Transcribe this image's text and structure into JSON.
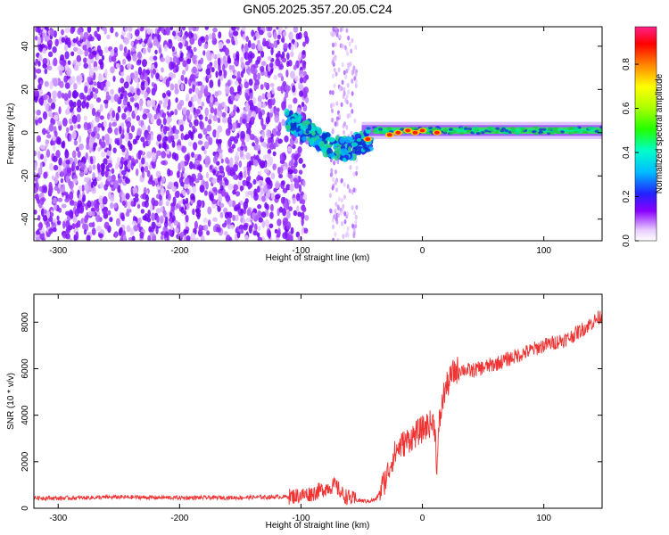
{
  "title": "GN05.2025.357.20.05.C24",
  "chart_data": [
    {
      "type": "heatmap",
      "xlabel": "Height of straight line (km)",
      "ylabel": "Frequency (Hz)",
      "xlim": [
        -320,
        148
      ],
      "ylim": [
        -50,
        49
      ],
      "x_ticks": [
        -300,
        -200,
        -100,
        0,
        100
      ],
      "y_ticks": [
        -40,
        -20,
        0,
        20,
        40
      ],
      "colorbar": {
        "label": "Normalized spectral amplitude",
        "range": [
          0,
          0.97
        ],
        "ticks": [
          "0.0",
          "0.2",
          "0.4",
          "0.6",
          "0.8"
        ]
      },
      "band_centerline": [
        {
          "x": -112,
          "y": 6
        },
        {
          "x": -100,
          "y": 2
        },
        {
          "x": -90,
          "y": -1
        },
        {
          "x": -80,
          "y": -5
        },
        {
          "x": -70,
          "y": -7
        },
        {
          "x": -60,
          "y": -8
        },
        {
          "x": -50,
          "y": -4
        },
        {
          "x": -40,
          "y": -3
        },
        {
          "x": -30,
          "y": -1
        },
        {
          "x": -20,
          "y": 0
        },
        {
          "x": -10,
          "y": 0
        },
        {
          "x": 0,
          "y": 1
        },
        {
          "x": 20,
          "y": 1
        },
        {
          "x": 60,
          "y": 1
        },
        {
          "x": 100,
          "y": 1
        },
        {
          "x": 148,
          "y": 1
        }
      ],
      "peak_regions": [
        {
          "x": -45,
          "y": -3
        },
        {
          "x": -27,
          "y": -1
        },
        {
          "x": -20,
          "y": 0
        },
        {
          "x": -12,
          "y": 1
        },
        {
          "x": -6,
          "y": 0
        },
        {
          "x": 0,
          "y": 1
        },
        {
          "x": 12,
          "y": 0
        }
      ]
    },
    {
      "type": "line",
      "xlabel": "Height of straight line (km)",
      "ylabel": "SNR (10 * v/v)",
      "xlim": [
        -320,
        148
      ],
      "ylim": [
        0,
        9200
      ],
      "x_ticks": [
        -300,
        -200,
        -100,
        0,
        100
      ],
      "y_ticks": [
        0,
        2000,
        4000,
        6000,
        8000
      ],
      "series": [
        {
          "color": "#ee3333",
          "x": [
            -320,
            -300,
            -250,
            -200,
            -150,
            -110,
            -100,
            -90,
            -80,
            -72,
            -65,
            -55,
            -45,
            -38,
            -30,
            -25,
            -20,
            -15,
            -10,
            -5,
            0,
            5,
            10,
            12,
            14,
            18,
            25,
            30,
            40,
            60,
            80,
            100,
            120,
            135,
            148
          ],
          "y": [
            450,
            430,
            480,
            450,
            460,
            500,
            550,
            650,
            850,
            1000,
            550,
            350,
            300,
            380,
            1300,
            2100,
            2600,
            2800,
            3000,
            3200,
            3400,
            3600,
            3700,
            1700,
            3700,
            5000,
            5800,
            6000,
            5900,
            6200,
            6600,
            7000,
            7300,
            7800,
            8300
          ]
        }
      ]
    }
  ]
}
